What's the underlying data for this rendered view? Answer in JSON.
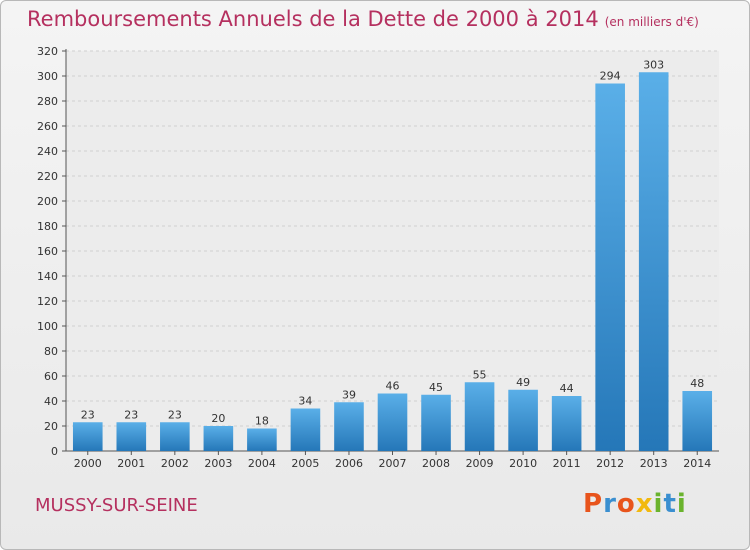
{
  "header": {
    "title": "Remboursements Annuels de la Dette de 2000 à 2014",
    "unit": "(en milliers d'€)"
  },
  "footer": {
    "city": "MUSSY-SUR-SEINE",
    "logo": "Proxiti"
  },
  "colors": {
    "title": "#b5305f",
    "bar_top": "#5aafe8",
    "bar_bottom": "#2577b8",
    "logo_letters": [
      "#e8541c",
      "#3a8fd0",
      "#e8541c",
      "#f2b90f",
      "#6ab32d",
      "#3a8fd0",
      "#6ab32d"
    ]
  },
  "chart_data": {
    "type": "bar",
    "title": "Remboursements Annuels de la Dette de 2000 à 2014",
    "categories": [
      "2000",
      "2001",
      "2002",
      "2003",
      "2004",
      "2005",
      "2006",
      "2007",
      "2008",
      "2009",
      "2010",
      "2011",
      "2012",
      "2013",
      "2014"
    ],
    "values": [
      23,
      23,
      23,
      20,
      18,
      34,
      39,
      46,
      45,
      55,
      49,
      44,
      294,
      303,
      48
    ],
    "ylim": [
      0,
      320
    ],
    "yticks": [
      0,
      20,
      40,
      60,
      80,
      100,
      120,
      140,
      160,
      180,
      200,
      220,
      240,
      260,
      280,
      300,
      320
    ],
    "grid": true
  }
}
